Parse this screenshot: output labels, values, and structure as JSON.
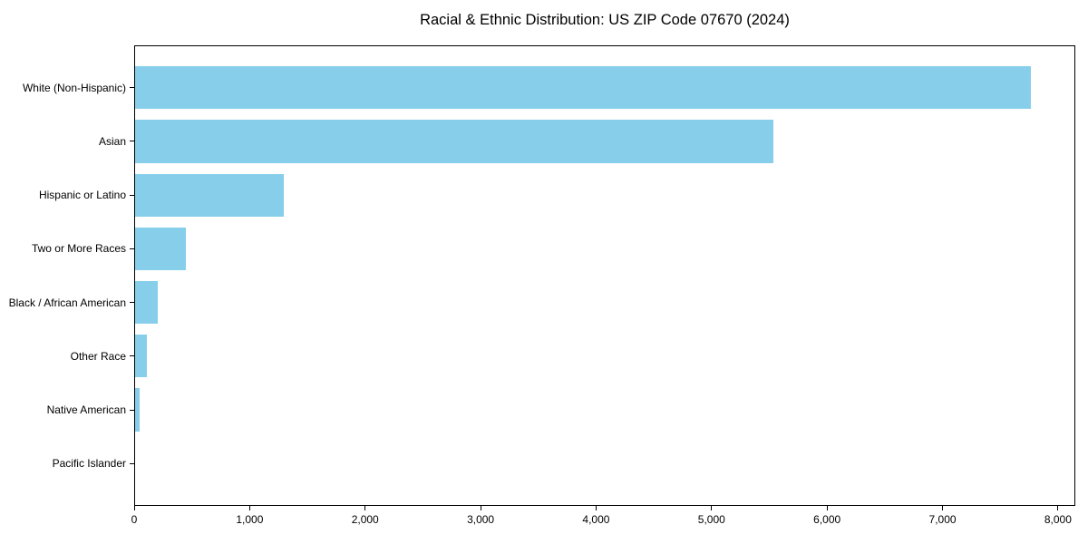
{
  "page": {
    "background_color": "#ffffff",
    "text_color": "#000000"
  },
  "chart_data": {
    "type": "bar",
    "orientation": "horizontal",
    "title": "Racial & Ethnic Distribution: US ZIP Code 07670 (2024)",
    "xlabel": "",
    "ylabel": "",
    "categories": [
      "White (Non-Hispanic)",
      "Asian",
      "Hispanic or Latino",
      "Two or More Races",
      "Black / African American",
      "Other Race",
      "Native American",
      "Pacific Islander"
    ],
    "values": [
      7760,
      5525,
      1285,
      440,
      195,
      100,
      40,
      0
    ],
    "bar_color": "#87CEEB",
    "xlim": [
      0,
      8150
    ],
    "x_ticks": {
      "values": [
        0,
        1000,
        2000,
        3000,
        4000,
        5000,
        6000,
        7000,
        8000
      ],
      "labels": [
        "0",
        "1,000",
        "2,000",
        "3,000",
        "4,000",
        "5,000",
        "6,000",
        "7,000",
        "8,000"
      ]
    },
    "grid": false,
    "legend": null,
    "spine_color": "#000000"
  }
}
